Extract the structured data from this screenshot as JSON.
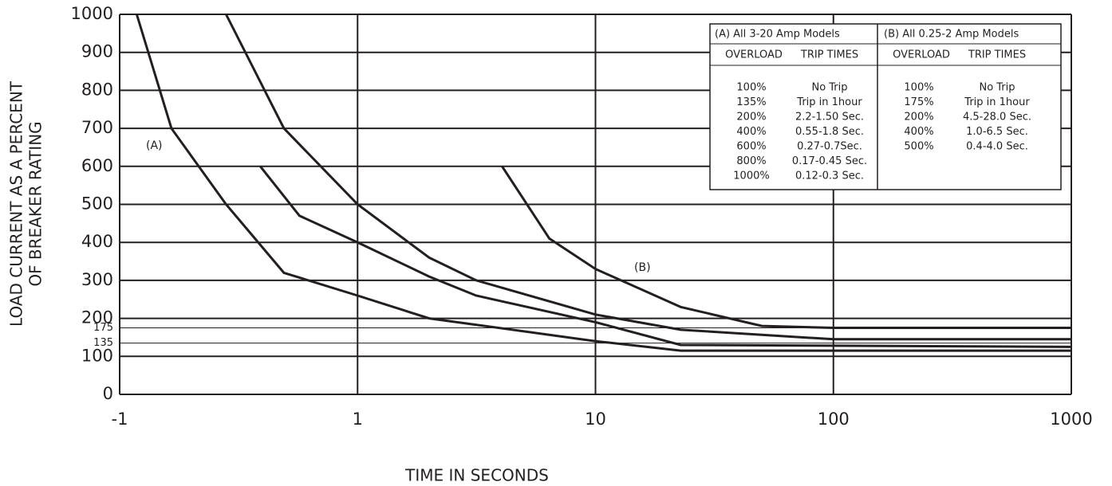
{
  "chart_data": {
    "type": "line",
    "xlabel": "TIME IN SECONDS",
    "ylabel": [
      "LOAD CURRENT AS A PERCENT",
      "OF BREAKER RATING"
    ],
    "xscale": "log",
    "xlim": [
      0.1,
      1000
    ],
    "xticks": [
      {
        "value": 0.1,
        "label": "-1"
      },
      1,
      10,
      100,
      1000
    ],
    "ylim": [
      0,
      1000
    ],
    "yticks": [
      0,
      100,
      135,
      175,
      200,
      300,
      400,
      500,
      600,
      700,
      800,
      900,
      1000
    ],
    "grid": true,
    "annotations": [
      "(A)",
      "(B)"
    ],
    "series": [
      {
        "color": "#231f20",
        "x": [
          0.118,
          0.165,
          0.28,
          0.49,
          1,
          2,
          10,
          22.8,
          1000
        ],
        "values": [
          1000,
          700,
          500,
          320,
          260,
          200,
          140,
          115,
          115
        ]
      },
      {
        "color": "#231f20",
        "x": [
          0.28,
          0.49,
          1,
          2,
          3.15,
          10,
          22.8,
          100,
          1000
        ],
        "values": [
          1000,
          700,
          500,
          360,
          300,
          210,
          170,
          145,
          145
        ]
      },
      {
        "color": "#231f20",
        "x": [
          0.39,
          0.57,
          1,
          2,
          3.15,
          10,
          22.8,
          1000
        ],
        "values": [
          600,
          470,
          400,
          310,
          260,
          190,
          130,
          125
        ]
      },
      {
        "color": "#231f20",
        "x": [
          4.05,
          6.4,
          10,
          22.8,
          50,
          100,
          1000
        ],
        "values": [
          600,
          410,
          330,
          230,
          180,
          175,
          175
        ]
      }
    ]
  },
  "trip_table": {
    "headers": [
      "(A) All 3-20 Amp Models",
      "(B) All 0.25-2 Amp Models"
    ],
    "subheaders": [
      "OVERLOAD",
      "TRIP TIMES",
      "OVERLOAD",
      "TRIP TIMES"
    ],
    "a_rows": [
      [
        "100%",
        "No Trip"
      ],
      [
        "135%",
        "Trip in 1hour"
      ],
      [
        "200%",
        "2.2-1.50 Sec."
      ],
      [
        "400%",
        "0.55-1.8 Sec."
      ],
      [
        "600%",
        "0.27-0.7Sec."
      ],
      [
        "800%",
        "0.17-0.45 Sec."
      ],
      [
        "1000%",
        "0.12-0.3 Sec."
      ]
    ],
    "b_rows": [
      [
        "100%",
        "No Trip"
      ],
      [
        "175%",
        "Trip in 1hour"
      ],
      [
        "200%",
        "4.5-28.0 Sec."
      ],
      [
        "400%",
        "1.0-6.5 Sec."
      ],
      [
        "500%",
        "0.4-4.0 Sec."
      ]
    ]
  }
}
